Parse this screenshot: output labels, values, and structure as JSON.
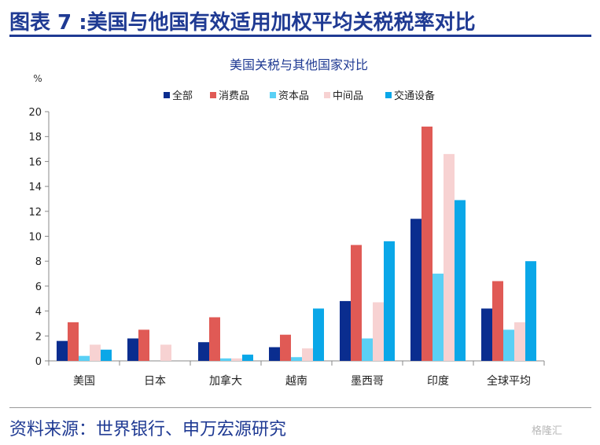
{
  "header": {
    "title": "图表 7 :美国与他国有效适用加权平均关税税率对比"
  },
  "footer": {
    "source": "资料来源：世界银行、申万宏源研究",
    "watermark": "格隆汇"
  },
  "colors": {
    "brand": "#1f3a93"
  },
  "chart_data": {
    "type": "bar",
    "title": "美国关税与其他国家对比",
    "ylabel": "%",
    "ylim": [
      0,
      20
    ],
    "yticks": [
      0,
      2,
      4,
      6,
      8,
      10,
      12,
      14,
      16,
      18,
      20
    ],
    "grid": false,
    "legend_position": "top",
    "categories": [
      "美国",
      "日本",
      "加拿大",
      "越南",
      "墨西哥",
      "印度",
      "全球平均"
    ],
    "series": [
      {
        "name": "全部",
        "color": "#0a2d8f",
        "values": [
          1.6,
          1.8,
          1.5,
          1.1,
          4.8,
          11.4,
          4.2
        ]
      },
      {
        "name": "消费品",
        "color": "#e05a55",
        "values": [
          3.1,
          2.5,
          3.5,
          2.1,
          9.3,
          18.8,
          6.4
        ]
      },
      {
        "name": "资本品",
        "color": "#5ad0f5",
        "values": [
          0.4,
          0.0,
          0.2,
          0.3,
          1.8,
          7.0,
          2.5
        ]
      },
      {
        "name": "中间品",
        "color": "#f7d2d2",
        "values": [
          1.3,
          1.3,
          0.2,
          1.0,
          4.7,
          16.6,
          3.1
        ]
      },
      {
        "name": "交通设备",
        "color": "#0aa7e8",
        "values": [
          0.9,
          0.0,
          0.5,
          4.2,
          9.6,
          12.9,
          8.0
        ]
      }
    ]
  }
}
